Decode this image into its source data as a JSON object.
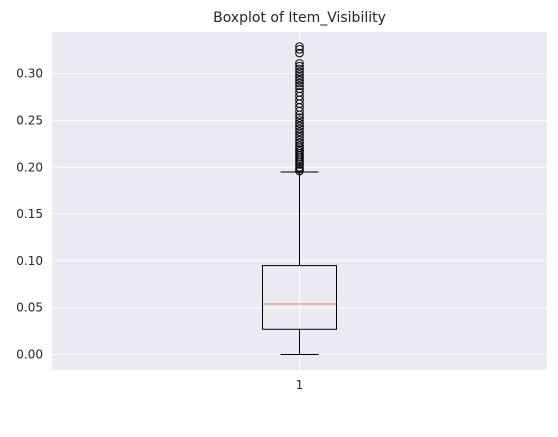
{
  "chart_data": {
    "type": "boxplot",
    "title": "Boxplot of Item_Visibility",
    "xlabel": "",
    "ylabel": "",
    "categories": [
      "1"
    ],
    "ylim": [
      -0.0165,
      0.3445
    ],
    "yticks": [
      0.0,
      0.05,
      0.1,
      0.15,
      0.2,
      0.25,
      0.3
    ],
    "ytick_labels": [
      "0.00",
      "0.05",
      "0.10",
      "0.15",
      "0.20",
      "0.25",
      "0.30"
    ],
    "grid": true,
    "box": {
      "whisker_low": 0.0,
      "q1": 0.027,
      "median": 0.054,
      "q3": 0.095,
      "whisker_high": 0.195
    },
    "outliers": [
      0.196,
      0.198,
      0.2,
      0.203,
      0.205,
      0.207,
      0.209,
      0.211,
      0.213,
      0.215,
      0.217,
      0.219,
      0.221,
      0.223,
      0.226,
      0.229,
      0.232,
      0.235,
      0.238,
      0.241,
      0.244,
      0.247,
      0.25,
      0.253,
      0.256,
      0.26,
      0.264,
      0.268,
      0.272,
      0.276,
      0.28,
      0.284,
      0.287,
      0.29,
      0.293,
      0.296,
      0.299,
      0.302,
      0.305,
      0.308,
      0.311,
      0.322,
      0.326,
      0.329
    ],
    "colors": {
      "background": "#eaeaf2",
      "grid": "#ffffff",
      "box": "#000000",
      "median": "#e1815c",
      "text": "#262626"
    }
  }
}
